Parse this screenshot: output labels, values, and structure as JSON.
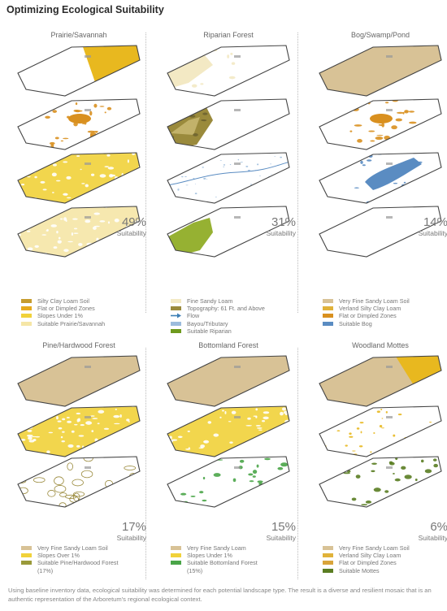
{
  "title": "Optimizing Ecological Suitability",
  "colors": {
    "dark_gold": "#c69c2e",
    "gold": "#e8b81f",
    "yellow": "#f1d23a",
    "pale_yellow": "#f5e6a6",
    "cream": "#f3e9c4",
    "tan": "#d8c296",
    "olive": "#9a8a3c",
    "green": "#96b132",
    "dark_green": "#5a7d22",
    "blue": "#5a8cc2",
    "light_blue": "#9cbcdd",
    "gray": "#bbb9ae",
    "orange": "#d9901f",
    "mid_green": "#4aa548"
  },
  "panels": [
    {
      "title": "Prairie/Savannah",
      "percent": "49%",
      "suitability": "Suitability",
      "legend": [
        {
          "label": "Silty Clay Loam Soil",
          "color": "#c69c2e"
        },
        {
          "label": "Flat or Dimpled Zones",
          "color": "#e6aa1d"
        },
        {
          "label": "Slopes Under 1%",
          "color": "#f1d23a"
        },
        {
          "label": "Suitable Prairie/Savannah",
          "color": "#f5e6a6"
        }
      ]
    },
    {
      "title": "Riparian Forest",
      "percent": "31%",
      "suitability": "Suitability",
      "legend": [
        {
          "label": "Fine Sandy Loam",
          "color": "#f3e9c4"
        },
        {
          "label": "Topography: 61 Ft. and Above",
          "color": "#9a8a3c"
        },
        {
          "label": "Flow",
          "color": "#3d7fb5",
          "arrow": true
        },
        {
          "label": "Bayou/Tributary",
          "color": "#9cbcdd"
        },
        {
          "label": "Suitable Riparian",
          "color": "#6e9a1e"
        }
      ]
    },
    {
      "title": "Bog/Swamp/Pond",
      "percent": "14%",
      "suitability": "Suitability",
      "legend": [
        {
          "label": "Very Fine Sandy Loam Soil",
          "color": "#d8c296"
        },
        {
          "label": "Verland Silty Clay Loam",
          "color": "#e0b23a"
        },
        {
          "label": "Flat or Dimpled Zones",
          "color": "#d9901f"
        },
        {
          "label": "Suitable Bog",
          "color": "#5a8cc2"
        }
      ]
    },
    {
      "title": "Pine/Hardwood Forest",
      "percent": "17%",
      "suitability": "Suitability",
      "legend": [
        {
          "label": "Very Fine Sandy Loam Soil",
          "color": "#d8c296"
        },
        {
          "label": "Slopes Over 1%",
          "color": "#f1d23a"
        },
        {
          "label": "Suitable Pine/Hardwood Forest (17%)",
          "color": "#9a9a3a"
        }
      ]
    },
    {
      "title": "Bottomland Forest",
      "percent": "15%",
      "suitability": "Suitability",
      "legend": [
        {
          "label": "Very Fine Sandy Loam",
          "color": "#d8c296"
        },
        {
          "label": "Slopes Under 1%",
          "color": "#f1d23a"
        },
        {
          "label": "Suitable Bottomland Forest (15%)",
          "color": "#4aa548"
        }
      ]
    },
    {
      "title": "Woodland Mottes",
      "percent": "6%",
      "suitability": "Suitability",
      "legend": [
        {
          "label": "Very Fine Sandy Loam Soil",
          "color": "#d8c296"
        },
        {
          "label": "Verland Silty Clay Loam",
          "color": "#e0b23a"
        },
        {
          "label": "Flat or Dimpled Zones",
          "color": "#d9a43a"
        },
        {
          "label": "Suitable Mottes",
          "color": "#5a7d22"
        }
      ]
    }
  ],
  "caption": "Using baseline inventory data, ecological suitability was determined for each potential landscape type. The result is a diverse and resilient mosaic that is an authentic representation of the Arboretum's regional ecological context."
}
